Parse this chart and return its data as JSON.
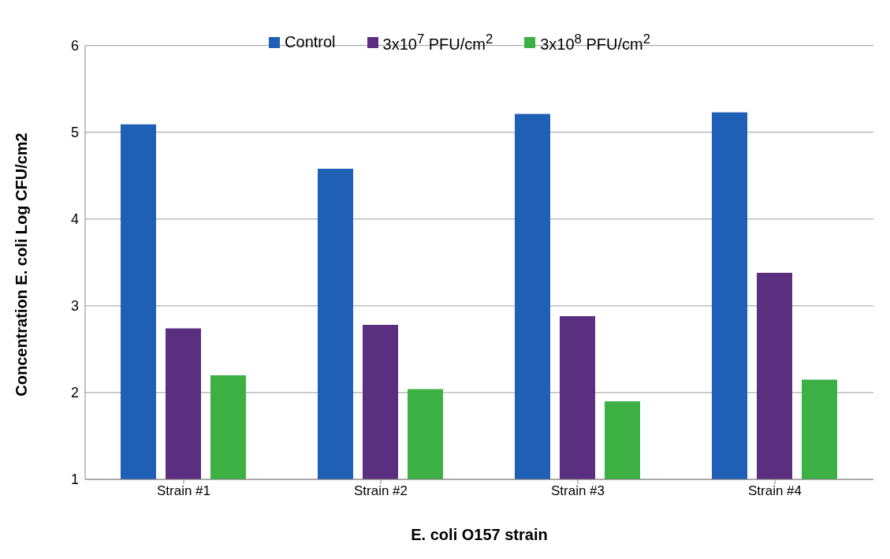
{
  "chart_data": {
    "type": "bar",
    "xlabel": "E. coli O157 strain",
    "ylabel": "Concentration E. coli Log CFU/cm2",
    "categories": [
      "Strain #1",
      "Strain #2",
      "Strain #3",
      "Strain #4"
    ],
    "series": [
      {
        "name": "Control",
        "color": "#1f5fb5",
        "values": [
          5.09,
          4.58,
          5.21,
          5.23
        ]
      },
      {
        "name": "3x10$^{7}$ PFU/cm$^{2}$",
        "color": "#5a2f80",
        "values": [
          2.74,
          2.78,
          2.88,
          3.38
        ]
      },
      {
        "name": "3x10$^{8}$ PFU/cm$^{2}$",
        "color": "#3cb043",
        "values": [
          2.2,
          2.04,
          1.9,
          2.15
        ]
      }
    ],
    "ylim": [
      1,
      6
    ],
    "yticks": [
      1,
      2,
      3,
      4,
      5,
      6
    ],
    "grid": "y",
    "legend": "top"
  }
}
